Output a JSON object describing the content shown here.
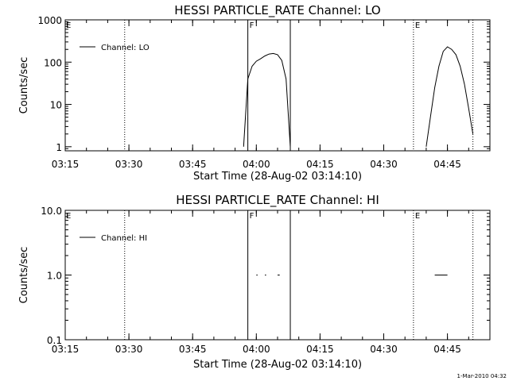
{
  "footer": {
    "timestamp": "1-Mar-2010 04:32"
  },
  "chart_data": [
    {
      "type": "line",
      "title": "HESSI PARTICLE_RATE Channel: LO",
      "xlabel": "Start Time (28-Aug-02 03:14:10)",
      "ylabel": "Counts/sec",
      "yscale": "log",
      "ylim": [
        0.8,
        1000
      ],
      "xlim": [
        "03:15",
        "04:55"
      ],
      "xticks": [
        "03:15",
        "03:30",
        "03:45",
        "04:00",
        "04:15",
        "04:30",
        "04:45"
      ],
      "yticks": [
        "1",
        "10",
        "100",
        "1000"
      ],
      "legend": {
        "label": "Channel: LO",
        "placement": "top-left"
      },
      "events": [
        {
          "time": "03:29",
          "style": "dotted",
          "label": ""
        },
        {
          "time": "03:58",
          "style": "solid",
          "label": "F"
        },
        {
          "time": "04:08",
          "style": "solid",
          "label": ""
        },
        {
          "time": "04:37",
          "style": "dotted",
          "label": "E"
        },
        {
          "time": "04:51",
          "style": "dotted",
          "label": ""
        }
      ],
      "x_edge_flag": "E",
      "series": [
        {
          "segments": [
            {
              "x": [
                "03:57",
                "03:58",
                "03:59",
                "04:00",
                "04:01",
                "04:02",
                "04:03",
                "04:04",
                "04:05",
                "04:06",
                "04:07",
                "04:08"
              ],
              "y": [
                1,
                40,
                80,
                105,
                120,
                140,
                155,
                160,
                150,
                110,
                40,
                1
              ]
            },
            {
              "x": [
                "04:40",
                "04:41",
                "04:42",
                "04:43",
                "04:44",
                "04:45",
                "04:46",
                "04:47",
                "04:48",
                "04:49",
                "04:50",
                "04:51"
              ],
              "y": [
                1,
                5,
                25,
                80,
                180,
                230,
                200,
                150,
                80,
                30,
                8,
                2
              ]
            }
          ]
        }
      ]
    },
    {
      "type": "line",
      "title": "HESSI PARTICLE_RATE Channel: HI",
      "xlabel": "Start Time (28-Aug-02 03:14:10)",
      "ylabel": "Counts/sec",
      "yscale": "log",
      "ylim": [
        0.1,
        10
      ],
      "xlim": [
        "03:15",
        "04:55"
      ],
      "xticks": [
        "03:15",
        "03:30",
        "03:45",
        "04:00",
        "04:15",
        "04:30",
        "04:45"
      ],
      "yticks": [
        "0.1",
        "1.0",
        "10.0"
      ],
      "legend": {
        "label": "Channel: HI",
        "placement": "top-left"
      },
      "events": [
        {
          "time": "03:29",
          "style": "dotted",
          "label": ""
        },
        {
          "time": "03:58",
          "style": "solid",
          "label": "F"
        },
        {
          "time": "04:08",
          "style": "solid",
          "label": ""
        },
        {
          "time": "04:37",
          "style": "dotted",
          "label": "E"
        },
        {
          "time": "04:51",
          "style": "dotted",
          "label": ""
        }
      ],
      "x_edge_flag": "E",
      "series": [
        {
          "segments": [
            {
              "x": [
                "04:00",
                "04:00.3"
              ],
              "y": [
                1,
                1
              ]
            },
            {
              "x": [
                "04:02",
                "04:02.3"
              ],
              "y": [
                1,
                1
              ]
            },
            {
              "x": [
                "04:05",
                "04:05.5"
              ],
              "y": [
                1,
                1
              ]
            },
            {
              "x": [
                "04:42",
                "04:45"
              ],
              "y": [
                1,
                1
              ]
            }
          ]
        }
      ]
    }
  ]
}
